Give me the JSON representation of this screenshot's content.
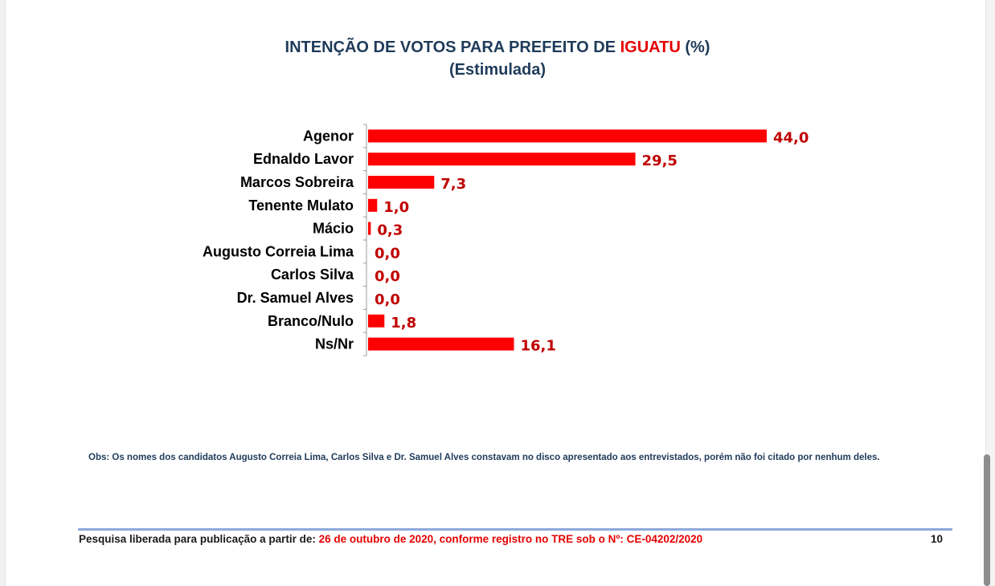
{
  "chart_data": {
    "type": "bar",
    "orientation": "horizontal",
    "title_parts": [
      "INTENÇÃO DE VOTOS PARA PREFEITO DE ",
      "IGUATU",
      " (%)"
    ],
    "subtitle": "(Estimulada)",
    "categories": [
      "Agenor",
      "Ednaldo Lavor",
      "Marcos Sobreira",
      "Tenente Mulato",
      "Mácio",
      "Augusto Correia Lima",
      "Carlos Silva",
      "Dr. Samuel Alves",
      "Branco/Nulo",
      "Ns/Nr"
    ],
    "values": [
      44.0,
      29.5,
      7.3,
      1.0,
      0.3,
      0.0,
      0.0,
      0.0,
      1.8,
      16.1
    ],
    "value_labels": [
      "44,0",
      "29,5",
      "7,3",
      "1,0",
      "0,3",
      "0,0",
      "0,0",
      "0,0",
      "1,8",
      "16,1"
    ],
    "xlim": [
      0,
      44
    ],
    "bar_color": "#ff0000",
    "value_label_color": "#c00000",
    "grid": false,
    "legend": "none"
  },
  "colors": {
    "title": "#1f3b5a",
    "highlight": "#e50000",
    "footer_rule": "#8ea9db"
  },
  "obs": "Obs: Os nomes dos candidatos Augusto Correia Lima, Carlos Silva e Dr. Samuel Alves constavam no disco apresentado aos entrevistados, porém não foi citado por nenhum deles.",
  "footer": {
    "prefix": "Pesquisa liberada para publicação a partir de: ",
    "highlight": "26 de outubro de 2020, conforme registro no TRE sob o Nº: CE-04202/2020",
    "page_number": "10"
  }
}
